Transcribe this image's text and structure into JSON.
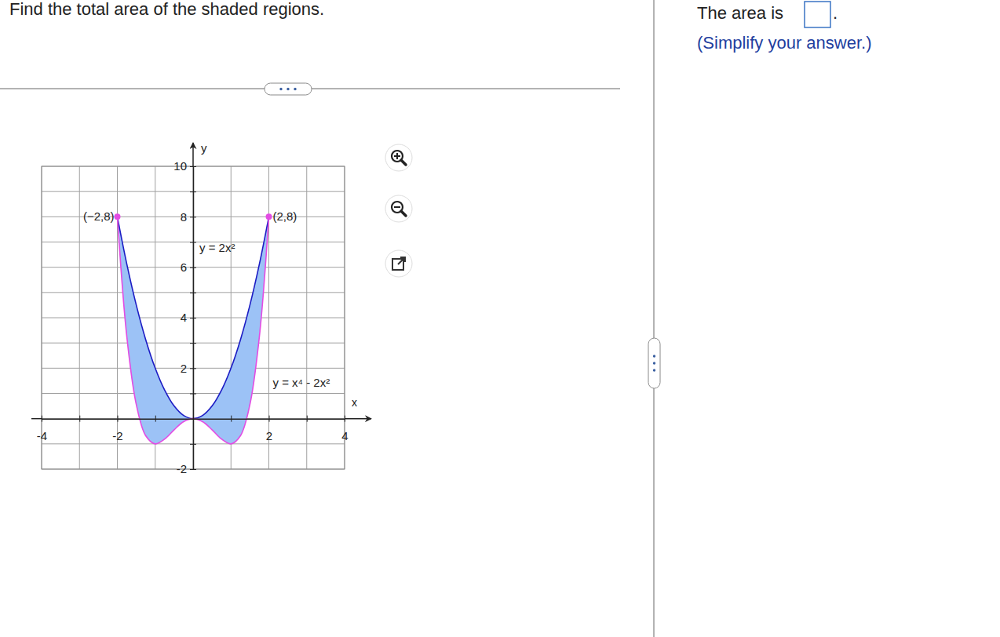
{
  "question": "Find the total area of the shaded regions.",
  "answer": {
    "prompt": "The area is",
    "end": ".",
    "hint": "(Simplify your answer.)"
  },
  "chart_data": {
    "type": "area",
    "x": [
      -2,
      -1.75,
      -1.5,
      -1.25,
      -1,
      -0.75,
      -0.5,
      -0.25,
      0,
      0.25,
      0.5,
      0.75,
      1,
      1.25,
      1.5,
      1.75,
      2
    ],
    "series": [
      {
        "name": "y = 2x²",
        "color": "#1c1cc4",
        "values": [
          8,
          6.125,
          4.5,
          3.125,
          2,
          1.125,
          0.5,
          0.125,
          0,
          0.125,
          0.5,
          1.125,
          2,
          3.125,
          4.5,
          6.125,
          8
        ]
      },
      {
        "name": "y = x⁴ - 2x²",
        "color": "#e34ce3",
        "values": [
          8,
          3.25,
          0.56,
          -0.68,
          -1,
          -0.81,
          -0.44,
          -0.12,
          0,
          -0.12,
          -0.44,
          -0.81,
          -1,
          -0.68,
          0.56,
          3.25,
          8
        ]
      }
    ],
    "color": "#9cc2f6",
    "annotations": [
      {
        "text": "(−2,8)",
        "x": -2,
        "y": 8
      },
      {
        "text": "(2,8)",
        "x": 2,
        "y": 8
      }
    ],
    "x_label": "x",
    "y_label": "y",
    "xlim": [
      -4,
      4
    ],
    "ylim": [
      -2,
      10
    ],
    "xticks": [
      -4,
      {
        "value": -3,
        "label": null
      },
      -2,
      {
        "value": -1,
        "label": null
      },
      {
        "value": 0,
        "label": null
      },
      {
        "value": 1,
        "label": null
      },
      2,
      {
        "value": 3,
        "label": null
      },
      4
    ],
    "yticks": [
      -2,
      {
        "value": -1,
        "label": null
      },
      {
        "value": 0,
        "label": null
      },
      {
        "value": 1,
        "label": null
      },
      2,
      {
        "value": 3,
        "label": null
      },
      4,
      {
        "value": 5,
        "label": null
      },
      6,
      {
        "value": 7,
        "label": null
      },
      8,
      {
        "value": 9,
        "label": null
      },
      10
    ],
    "grid": true
  }
}
